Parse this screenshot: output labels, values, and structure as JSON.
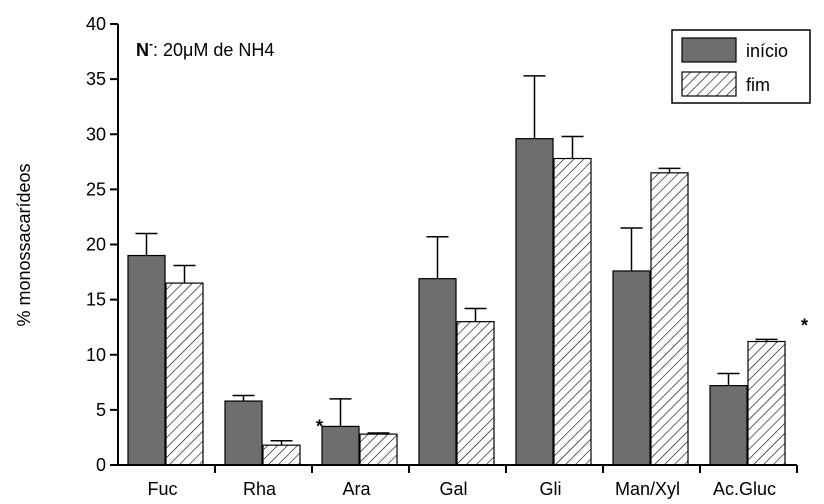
{
  "chart_data": {
    "type": "bar",
    "y_label": "% monossacarídeos",
    "note": {
      "bold": "N",
      "superscript": "-",
      "text": ": 20μM de NH4"
    },
    "categories": [
      "Fuc",
      "Rha",
      "Ara",
      "Gal",
      "Gli",
      "Man/Xyl",
      "Ac.Gluc"
    ],
    "series": [
      {
        "name": "início",
        "color": "#6e6e6e",
        "pattern": "solid",
        "values": [
          19.0,
          5.8,
          3.5,
          16.9,
          29.6,
          17.6,
          7.2
        ],
        "errors": [
          2.0,
          0.5,
          2.5,
          3.8,
          5.7,
          3.9,
          1.1
        ]
      },
      {
        "name": "fim",
        "color": "#000000",
        "pattern": "hatch",
        "values": [
          16.5,
          1.8,
          2.8,
          13.0,
          27.8,
          26.5,
          11.2
        ],
        "errors": [
          1.6,
          0.4,
          0.1,
          1.2,
          2.0,
          0.4,
          0.2
        ]
      }
    ],
    "annotations": [
      {
        "text": "*",
        "category": "Rha"
      },
      {
        "text": "*",
        "category": "Ac.Gluc"
      }
    ],
    "ylim": [
      0,
      40
    ],
    "yticks": [
      0,
      5,
      10,
      15,
      20,
      25,
      30,
      35,
      40
    ],
    "legend": "top-right"
  }
}
